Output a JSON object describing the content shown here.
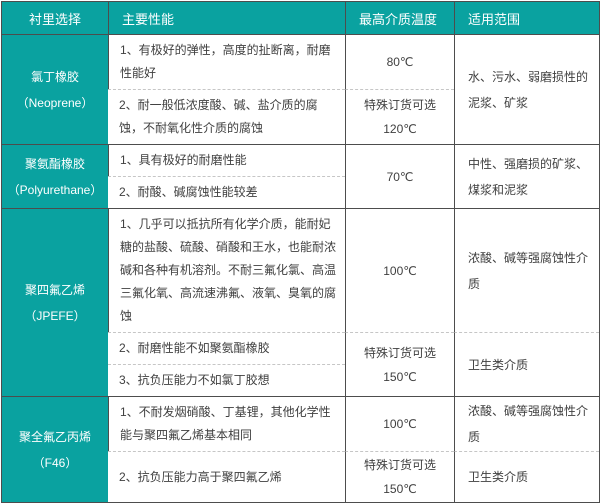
{
  "table_title": "衬里选择",
  "header": {
    "col1": "衬里选择",
    "col2": "主要性能",
    "col3": "最高介质温度",
    "col4": "适用范围"
  },
  "materials": [
    {
      "name": "氯丁橡胶",
      "alias": "（Neoprene）",
      "perf": [
        "1、有极好的弹性，高度的扯断离，耐磨性能好",
        "2、耐一般低浓度酸、碱、盐介质的腐蚀，不耐氧化性介质的腐蚀"
      ],
      "temp": [
        [
          "80℃"
        ],
        [
          "特殊订货可选",
          "120℃"
        ]
      ],
      "range": [
        "水、污水、弱磨损性的泥浆、矿浆"
      ]
    },
    {
      "name": "聚氨酯橡胶",
      "alias": "（Polyurethane）",
      "perf": [
        "1、具有极好的耐磨性能",
        "2、耐酸、碱腐蚀性能较差"
      ],
      "temp": [
        [
          "70℃"
        ]
      ],
      "range": [
        "中性、强磨损的矿浆、煤浆和泥浆"
      ]
    },
    {
      "name": "聚四氟乙烯",
      "alias": "（JPEFE）",
      "perf": [
        "1、几乎可以抵抗所有化学介质，能耐妃糖的盐酸、硫酸、硝酸和王水，也能耐浓碱和各种有机溶剂。不耐三氟化氯、高温三氟化氧、高流速沸氟、液氧、臭氧的腐蚀",
        "2、耐磨性能不如聚氨酯橡胶",
        "3、抗负压能力不如氯丁胶想"
      ],
      "temp": [
        [
          "100℃"
        ],
        [
          "特殊订货可选",
          "150℃"
        ]
      ],
      "range": [
        "浓酸、碱等强腐蚀性介质",
        "卫生类介质"
      ]
    },
    {
      "name": "聚全氟乙丙烯",
      "alias": "（F46）",
      "perf": [
        "1、不耐发烟硝酸、丁基锂，其他化学性能与聚四氟乙烯基本相同",
        "2、抗负压能力高于聚四氟乙烯"
      ],
      "temp": [
        [
          "100℃"
        ],
        [
          "特殊订货可选",
          "150℃"
        ]
      ],
      "range": [
        "浓酸、碱等强腐蚀性介质",
        "卫生类介质"
      ]
    }
  ],
  "colors": {
    "accent_teal": "#0aa2a0",
    "border_dark": "#4d4d4d",
    "divider_dashed": "#c6c6c6",
    "body_text": "#3f3f3f",
    "header_text": "#ffffff"
  }
}
